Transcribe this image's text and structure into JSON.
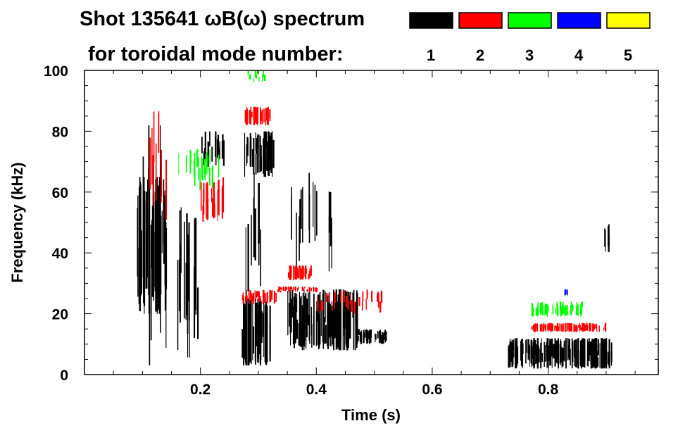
{
  "chart_data": {
    "type": "heatmap",
    "title": "Shot 135641 ωB(ω) spectrum",
    "subtitle": "for toroidal mode number:",
    "xlabel": "Time (s)",
    "ylabel": "Frequency (kHz)",
    "xlim": [
      0,
      0.99
    ],
    "ylim": [
      0,
      100
    ],
    "xticks": [
      "0.2",
      "0.4",
      "0.6",
      "0.8"
    ],
    "xtick_values": [
      0.2,
      0.4,
      0.6,
      0.8
    ],
    "yticks": [
      "0",
      "20",
      "40",
      "60",
      "80",
      "100"
    ],
    "ytick_values": [
      0,
      20,
      40,
      60,
      80,
      100
    ],
    "legend": [
      {
        "mode": "1",
        "color": "#000000"
      },
      {
        "mode": "2",
        "color": "#ff0000"
      },
      {
        "mode": "3",
        "color": "#00ff00"
      },
      {
        "mode": "4",
        "color": "#0000ff"
      },
      {
        "mode": "5",
        "color": "#ffff00"
      }
    ],
    "regions": [
      {
        "mode": 1,
        "t": [
          0.09,
          0.14
        ],
        "f": [
          20,
          65
        ],
        "density": 0.9
      },
      {
        "mode": 1,
        "t": [
          0.1,
          0.14
        ],
        "f": [
          3,
          85
        ],
        "density": 0.3
      },
      {
        "mode": 1,
        "t": [
          0.16,
          0.2
        ],
        "f": [
          5,
          55
        ],
        "density": 0.5
      },
      {
        "mode": 1,
        "t": [
          0.2,
          0.24
        ],
        "f": [
          68,
          80
        ],
        "density": 0.5
      },
      {
        "mode": 1,
        "t": [
          0.27,
          0.32
        ],
        "f": [
          3,
          25
        ],
        "density": 0.95
      },
      {
        "mode": 1,
        "t": [
          0.275,
          0.325
        ],
        "f": [
          65,
          80
        ],
        "density": 0.9
      },
      {
        "mode": 1,
        "t": [
          0.27,
          0.31
        ],
        "f": [
          20,
          70
        ],
        "density": 0.25
      },
      {
        "mode": 1,
        "t": [
          0.35,
          0.47
        ],
        "f": [
          8,
          28
        ],
        "density": 0.95
      },
      {
        "mode": 1,
        "t": [
          0.47,
          0.52
        ],
        "f": [
          10,
          15
        ],
        "density": 0.7
      },
      {
        "mode": 1,
        "t": [
          0.35,
          0.43
        ],
        "f": [
          28,
          70
        ],
        "density": 0.2
      },
      {
        "mode": 1,
        "t": [
          0.73,
          0.91
        ],
        "f": [
          2,
          12
        ],
        "density": 0.95
      },
      {
        "mode": 1,
        "t": [
          0.895,
          0.905
        ],
        "f": [
          40,
          50
        ],
        "density": 0.6
      },
      {
        "mode": 2,
        "t": [
          0.11,
          0.14
        ],
        "f": [
          50,
          88
        ],
        "density": 0.35
      },
      {
        "mode": 2,
        "t": [
          0.2,
          0.24
        ],
        "f": [
          50,
          65
        ],
        "density": 0.6
      },
      {
        "mode": 2,
        "t": [
          0.275,
          0.32
        ],
        "f": [
          82,
          88
        ],
        "density": 0.95
      },
      {
        "mode": 2,
        "t": [
          0.27,
          0.33
        ],
        "f": [
          23,
          28
        ],
        "density": 0.7
      },
      {
        "mode": 2,
        "t": [
          0.33,
          0.4
        ],
        "f": [
          27,
          29
        ],
        "density": 0.6
      },
      {
        "mode": 2,
        "t": [
          0.35,
          0.39
        ],
        "f": [
          31,
          36
        ],
        "density": 0.9
      },
      {
        "mode": 2,
        "t": [
          0.4,
          0.52
        ],
        "f": [
          20,
          28
        ],
        "density": 0.25
      },
      {
        "mode": 2,
        "t": [
          0.77,
          0.9
        ],
        "f": [
          14,
          17
        ],
        "density": 0.85
      },
      {
        "mode": 3,
        "t": [
          0.15,
          0.24
        ],
        "f": [
          60,
          75
        ],
        "density": 0.25
      },
      {
        "mode": 3,
        "t": [
          0.77,
          0.86
        ],
        "f": [
          19,
          24
        ],
        "density": 0.7
      },
      {
        "mode": 3,
        "t": [
          0.28,
          0.31
        ],
        "f": [
          96,
          100
        ],
        "density": 0.4
      },
      {
        "mode": 4,
        "t": [
          0.828,
          0.832
        ],
        "f": [
          26,
          28
        ],
        "density": 1.0
      }
    ]
  }
}
